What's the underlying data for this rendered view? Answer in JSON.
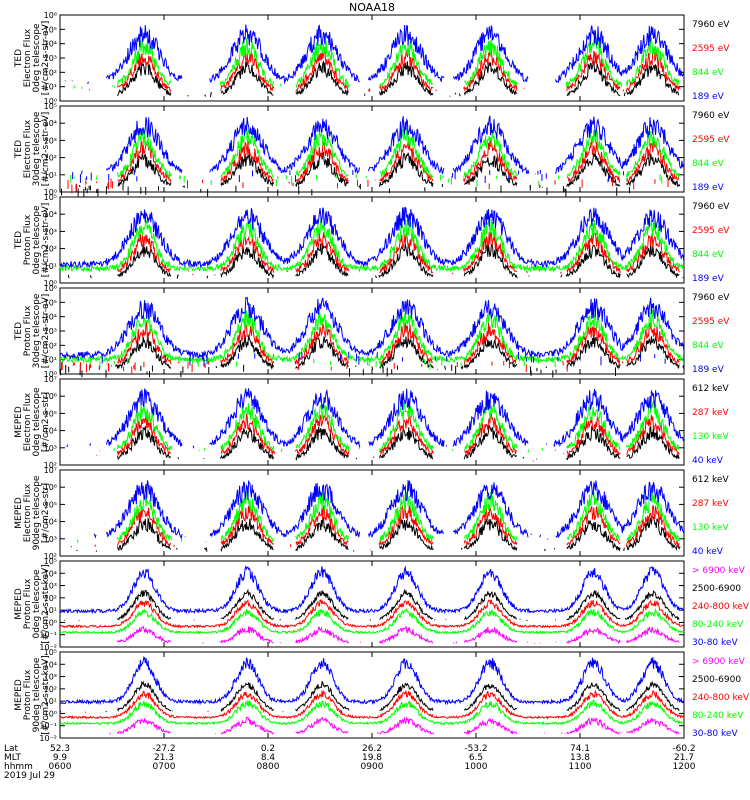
{
  "title": "NOAA18",
  "colors": {
    "blue": "#0000ff",
    "red": "#ff0000",
    "green": "#00ff00",
    "black": "#000000",
    "magenta": "#ff00ff"
  },
  "bottom": {
    "row_labels": [
      "Lat",
      "MLT",
      "hhmm",
      "2019 Jul 29"
    ],
    "columns": [
      {
        "lat": "52.3",
        "mlt": "9.9",
        "hhmm": "0600"
      },
      {
        "lat": "-27.2",
        "mlt": "21.3",
        "hhmm": "0700"
      },
      {
        "lat": "0.2",
        "mlt": "8.4",
        "hhmm": "0800"
      },
      {
        "lat": "26.2",
        "mlt": "19.8",
        "hhmm": "0900"
      },
      {
        "lat": "-53.2",
        "mlt": "6.5",
        "hhmm": "1000"
      },
      {
        "lat": "74.1",
        "mlt": "13.8",
        "hhmm": "1100"
      },
      {
        "lat": "-60.2",
        "mlt": "21.7",
        "hhmm": "1200"
      }
    ]
  },
  "chart_data": [
    {
      "type": "line",
      "title": "NOAA18",
      "ylabel": [
        "TED",
        "Electron Flux",
        "0deg telescope",
        "[#/cm2-s-str-eV]"
      ],
      "y_log_range": [
        0,
        6
      ],
      "y_ticks": [
        "10⁰",
        "10¹",
        "10²",
        "10³",
        "10⁴",
        "10⁵",
        "10⁶"
      ],
      "series": [
        {
          "name": "7960 eV",
          "color": "#000000"
        },
        {
          "name": "2595 eV",
          "color": "#ff0000"
        },
        {
          "name": "844 eV",
          "color": "#00ff00"
        },
        {
          "name": "189 eV",
          "color": "#0000ff"
        }
      ]
    },
    {
      "type": "line",
      "ylabel": [
        "TED",
        "Electron Flux",
        "30deg telescope",
        "[#/cm2-s-str-eV]"
      ],
      "y_log_range": [
        0,
        5
      ],
      "y_ticks": [
        "10⁰",
        "10¹",
        "10²",
        "10³",
        "10⁴",
        "10⁵"
      ],
      "series": [
        {
          "name": "7960 eV",
          "color": "#000000"
        },
        {
          "name": "2595 eV",
          "color": "#ff0000"
        },
        {
          "name": "844 eV",
          "color": "#00ff00"
        },
        {
          "name": "189 eV",
          "color": "#0000ff"
        }
      ]
    },
    {
      "type": "line",
      "ylabel": [
        "TED",
        "Proton Flux",
        "0deg telescope",
        "[#/cm2-s-str-eV]"
      ],
      "y_log_range": [
        0,
        5
      ],
      "y_ticks": [
        "10⁰",
        "10¹",
        "10²",
        "10³",
        "10⁴",
        "10⁵"
      ],
      "series": [
        {
          "name": "7960 eV",
          "color": "#000000"
        },
        {
          "name": "2595 eV",
          "color": "#ff0000"
        },
        {
          "name": "844 eV",
          "color": "#00ff00"
        },
        {
          "name": "189 eV",
          "color": "#0000ff"
        }
      ]
    },
    {
      "type": "line",
      "ylabel": [
        "TED",
        "Proton Flux",
        "30deg telescope",
        "[#/cm2-s-str-eV]"
      ],
      "y_log_range": [
        0,
        6
      ],
      "y_ticks": [
        "10⁰",
        "10¹",
        "10²",
        "10³",
        "10⁴",
        "10⁵",
        "10⁶"
      ],
      "series": [
        {
          "name": "7960 eV",
          "color": "#000000"
        },
        {
          "name": "2595 eV",
          "color": "#ff0000"
        },
        {
          "name": "844 eV",
          "color": "#00ff00"
        },
        {
          "name": "189 eV",
          "color": "#0000ff"
        }
      ]
    },
    {
      "type": "line",
      "ylabel": [
        "MEPED",
        "Electron Flux",
        "0deg telescope",
        "[#/cm2-s-str]"
      ],
      "y_log_range": [
        2,
        7
      ],
      "y_ticks": [
        "10²",
        "10³",
        "10⁴",
        "10⁵",
        "10⁶",
        "10⁷"
      ],
      "series": [
        {
          "name": "612 keV",
          "color": "#000000"
        },
        {
          "name": "287 keV",
          "color": "#ff0000"
        },
        {
          "name": "130 keV",
          "color": "#00ff00"
        },
        {
          "name": "40 keV",
          "color": "#0000ff"
        }
      ]
    },
    {
      "type": "line",
      "ylabel": [
        "MEPED",
        "Electron Flux",
        "90deg telescope",
        "[#/cm2-s-str]"
      ],
      "y_log_range": [
        2,
        7
      ],
      "y_ticks": [
        "10²",
        "10³",
        "10⁴",
        "10⁵",
        "10⁶",
        "10⁷"
      ],
      "series": [
        {
          "name": "612 keV",
          "color": "#000000"
        },
        {
          "name": "287 keV",
          "color": "#ff0000"
        },
        {
          "name": "130 keV",
          "color": "#00ff00"
        },
        {
          "name": "40 keV",
          "color": "#0000ff"
        }
      ]
    },
    {
      "type": "line",
      "ylabel": [
        "MEPED",
        "Proton Flux",
        "0deg telescope",
        "[#/cm2-s-str-keV]"
      ],
      "y_log_range": [
        -2,
        5
      ],
      "y_ticks": [
        "10⁻²",
        "10⁻¹",
        "10⁰",
        "10¹",
        "10²",
        "10³",
        "10⁴",
        "10⁵"
      ],
      "series": [
        {
          "name": "> 6900 keV",
          "color": "#ff00ff"
        },
        {
          "name": "2500-6900",
          "color": "#000000"
        },
        {
          "name": "240-800 keV",
          "color": "#ff0000"
        },
        {
          "name": "80-240 keV",
          "color": "#00ff00"
        },
        {
          "name": "30-80 keV",
          "color": "#0000ff"
        }
      ]
    },
    {
      "type": "line",
      "ylabel": [
        "MEPED",
        "Proton Flux",
        "90deg telescope",
        "[#/cm2-s-str-keV]"
      ],
      "y_log_range": [
        -2,
        5
      ],
      "y_ticks": [
        "10⁻²",
        "10⁻¹",
        "10⁰",
        "10¹",
        "10²",
        "10³",
        "10⁴",
        "10⁵"
      ],
      "series": [
        {
          "name": "> 6900 keV",
          "color": "#ff00ff"
        },
        {
          "name": "2500-6900",
          "color": "#000000"
        },
        {
          "name": "240-800 keV",
          "color": "#ff0000"
        },
        {
          "name": "80-240 keV",
          "color": "#00ff00"
        },
        {
          "name": "30-80 keV",
          "color": "#0000ff"
        }
      ]
    }
  ]
}
